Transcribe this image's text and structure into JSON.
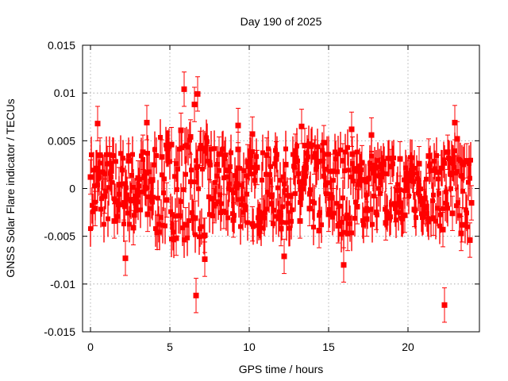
{
  "chart_data": {
    "type": "scatter",
    "title": "Day 190 of 2025",
    "xlabel": "GPS time / hours",
    "ylabel": "GNSS Solar Flare indicator / TECUs",
    "xlim": [
      -0.5,
      24.5
    ],
    "ylim": [
      -0.015,
      0.015
    ],
    "xticks": [
      0,
      5,
      10,
      15,
      20
    ],
    "xtick_labels": [
      "0",
      "5",
      "10",
      "15",
      "20"
    ],
    "yticks": [
      -0.015,
      -0.01,
      -0.005,
      0,
      0.005,
      0.01,
      0.015
    ],
    "ytick_labels": [
      "-0.015",
      "-0.01",
      "-0.005",
      "0",
      "0.005",
      "0.01",
      "0.015"
    ],
    "grid": true,
    "color": "#ff0000",
    "series": [
      {
        "name": "indicator",
        "marker": "square",
        "error_bars": true,
        "x": [
          0.0,
          0.3,
          0.6,
          0.9,
          1.2,
          1.5,
          1.8,
          2.1,
          2.4,
          2.7,
          3.0,
          3.3,
          3.6,
          3.9,
          4.2,
          4.5,
          4.8,
          5.1,
          5.4,
          5.7,
          6.0,
          6.3,
          6.6,
          6.9,
          7.2,
          7.5,
          7.8,
          8.1,
          8.4,
          8.7,
          9.0,
          9.3,
          9.6,
          9.9,
          10.2,
          10.5,
          10.8,
          11.1,
          11.4,
          11.7,
          12.0,
          12.3,
          12.6,
          12.9,
          13.2,
          13.5,
          13.8,
          14.1,
          14.4,
          14.7,
          15.0,
          15.3,
          15.6,
          15.9,
          16.2,
          16.5,
          16.8,
          17.1,
          17.4,
          17.7,
          18.0,
          18.3,
          18.6,
          18.9,
          19.2,
          19.5,
          19.8,
          20.1,
          20.4,
          20.7,
          21.0,
          21.3,
          21.6,
          21.9,
          22.2,
          22.5,
          22.8,
          23.1,
          23.4,
          23.7,
          24.0,
          0.45,
          2.2,
          3.55,
          5.9,
          6.55,
          6.65,
          6.75,
          7.2,
          9.3,
          12.2,
          15.95,
          16.45,
          22.3,
          22.95,
          23.35,
          23.9,
          10.2,
          13.3,
          17.7
        ],
        "y": [
          0.0012,
          -0.0021,
          0.0035,
          -0.0008,
          0.0026,
          -0.0034,
          0.0004,
          -0.0015,
          0.0029,
          -0.0041,
          0.0011,
          0.0038,
          -0.0027,
          0.0009,
          -0.0046,
          0.0033,
          -0.0012,
          0.0046,
          -0.0052,
          0.0061,
          -0.0038,
          0.0054,
          -0.0031,
          0.0042,
          -0.0049,
          0.0027,
          -0.0018,
          0.0036,
          -0.0024,
          0.0019,
          -0.0033,
          0.0041,
          -0.0011,
          0.0028,
          -0.0037,
          0.0022,
          -0.0029,
          0.0035,
          -0.0016,
          0.0031,
          -0.0042,
          0.0025,
          -0.0008,
          0.0039,
          -0.0034,
          0.0045,
          -0.0021,
          0.0033,
          -0.0044,
          0.0048,
          -0.0027,
          0.0018,
          -0.0039,
          0.0029,
          -0.0047,
          0.0036,
          -0.0019,
          0.0027,
          -0.0032,
          0.0021,
          -0.0025,
          0.0014,
          -0.0036,
          0.0023,
          -0.0017,
          0.0031,
          -0.0028,
          0.0011,
          -0.0022,
          0.0026,
          -0.0019,
          0.0034,
          -0.0031,
          0.0017,
          -0.0043,
          0.0038,
          -0.0026,
          0.0052,
          -0.0038,
          0.0029,
          -0.0015,
          0.0068,
          -0.0073,
          0.0069,
          0.0104,
          0.0088,
          -0.0112,
          0.0099,
          -0.0074,
          0.0066,
          -0.0071,
          -0.008,
          0.0062,
          -0.0122,
          0.0069,
          -0.0047,
          -0.0054,
          0.0057,
          0.0065,
          0.0056
        ]
      }
    ]
  }
}
